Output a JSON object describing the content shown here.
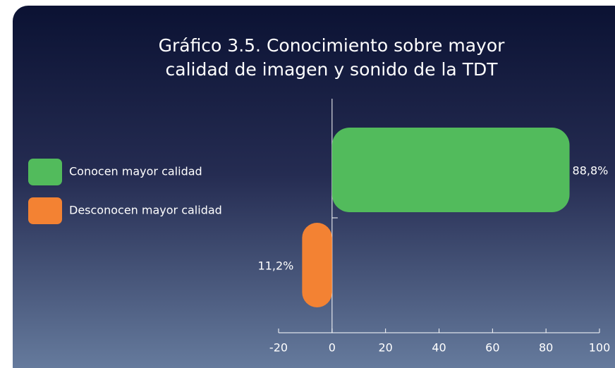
{
  "chart_data": {
    "type": "hbar",
    "title": [
      "Gráfico 3.5. Conocimiento sobre mayor",
      "calidad de imagen y sonido de la TDT"
    ],
    "categories": [
      "Conocen mayor calidad",
      "Desconocen mayor calidad"
    ],
    "values": [
      88.8,
      -11.2
    ],
    "value_labels": [
      "88,8%",
      "11,2%"
    ],
    "colors": [
      "#52bb5c",
      "#f38233"
    ],
    "xlim": [
      -20,
      100
    ],
    "xticks": [
      -20,
      0,
      20,
      40,
      60,
      80,
      100
    ]
  }
}
